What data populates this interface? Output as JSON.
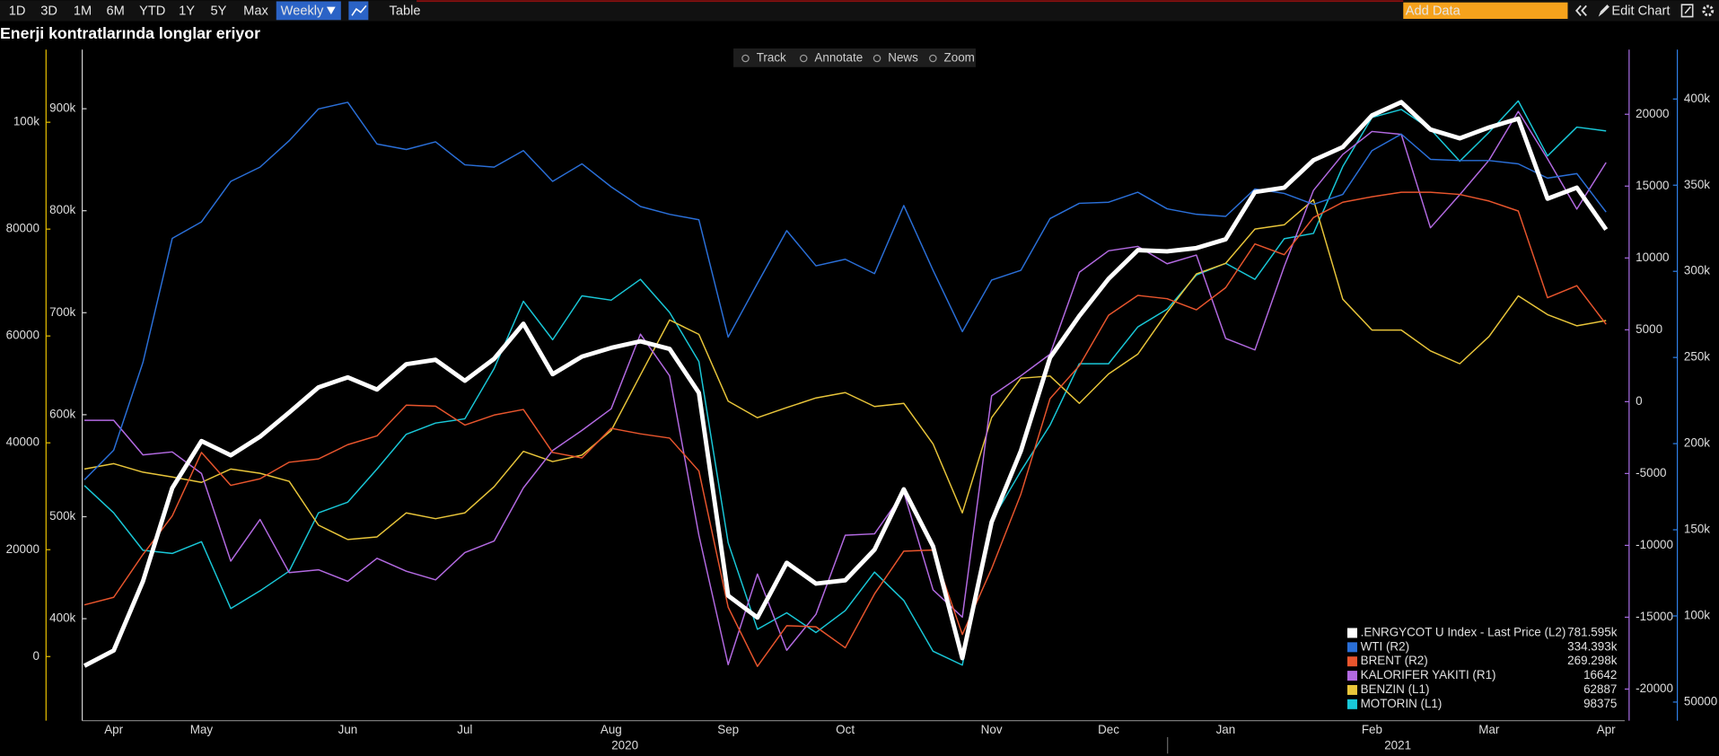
{
  "toolbar": {
    "periods": [
      "1D",
      "3D",
      "1M",
      "6M",
      "YTD",
      "1Y",
      "5Y",
      "Max"
    ],
    "frequency": "Weekly",
    "table": "Table",
    "add_data": "Add Data",
    "edit_chart": "Edit Chart"
  },
  "chart_tools": [
    "Track",
    "Annotate",
    "News",
    "Zoom"
  ],
  "chart_data": {
    "type": "line",
    "title": "Enerji kontratlarında longlar eriyor",
    "categories": [
      null,
      "Apr",
      null,
      null,
      "May",
      null,
      null,
      null,
      null,
      "Jun",
      null,
      null,
      null,
      "Jul",
      null,
      null,
      null,
      null,
      "Aug",
      null,
      null,
      null,
      "Sep",
      null,
      null,
      null,
      "Oct",
      null,
      null,
      null,
      null,
      "Nov",
      null,
      null,
      null,
      "Dec",
      null,
      null,
      null,
      "Jan",
      null,
      null,
      null,
      null,
      "Feb",
      null,
      null,
      null,
      "Mar",
      null,
      null,
      null,
      "Apr"
    ],
    "years": [
      "2020",
      "2021"
    ],
    "axes": {
      "L1": {
        "color": "#e8c000",
        "ylim": [
          -12000,
          113600
        ],
        "yticks": [
          0,
          20000,
          40000,
          60000,
          80000,
          {
            "value": 100000,
            "label": "100k"
          }
        ]
      },
      "L2": {
        "color": "#cfcfcf",
        "ylim": [
          300000,
          958000
        ],
        "yticks": [
          {
            "value": 400000,
            "label": "400k"
          },
          {
            "value": 500000,
            "label": "500k"
          },
          {
            "value": 600000,
            "label": "600k"
          },
          {
            "value": 700000,
            "label": "700k"
          },
          {
            "value": 800000,
            "label": "800k"
          },
          {
            "value": 900000,
            "label": "900k"
          }
        ]
      },
      "R1": {
        "color": "#a56be0",
        "ylim": [
          -22200,
          24500
        ],
        "yticks": [
          -20000,
          -15000,
          -10000,
          -5000,
          0,
          5000,
          10000,
          15000,
          20000
        ]
      },
      "R2": {
        "color": "#2f7fe6",
        "ylim": [
          39200,
          428700
        ],
        "yticks": [
          50000,
          {
            "value": 100000,
            "label": "100k"
          },
          {
            "value": 150000,
            "label": "150k"
          },
          {
            "value": 200000,
            "label": "200k"
          },
          {
            "value": 250000,
            "label": "250k"
          },
          {
            "value": 300000,
            "label": "300k"
          },
          {
            "value": 350000,
            "label": "350k"
          },
          {
            "value": 400000,
            "label": "400k"
          }
        ]
      }
    },
    "series": [
      {
        "name": ".ENRGYCOT U Index - Last Price (L2)",
        "axis": "L2",
        "color": "#ffffff",
        "width": 4,
        "last_label": "781.595k",
        "values": [
          353800,
          368800,
          436600,
          528000,
          574200,
          560200,
          578500,
          602200,
          626900,
          636600,
          624700,
          649500,
          653800,
          633300,
          654800,
          689200,
          639800,
          657000,
          665600,
          672000,
          664500,
          621500,
          422600,
          401100,
          454800,
          434400,
          437600,
          467700,
          526900,
          471000,
          361300,
          494600,
          564500,
          655900,
          696800,
          733300,
          761300,
          760200,
          763400,
          772000,
          818300,
          822600,
          849500,
          862400,
          893500,
          906500,
          879600,
          871000,
          881700,
          890300,
          811800,
          822600,
          781595
        ]
      },
      {
        "name": "WTI  (R2)",
        "axis": "R2",
        "color": "#2a6fd8",
        "width": 1.2,
        "last_label": "334.393k",
        "values": [
          179000,
          196200,
          247100,
          319100,
          328700,
          352200,
          360500,
          375800,
          394300,
          398100,
          373900,
          370700,
          375200,
          361800,
          360500,
          370100,
          352200,
          362400,
          349000,
          337600,
          333100,
          329900,
          261800,
          293000,
          323600,
          303200,
          307000,
          298700,
          338200,
          300600,
          265000,
          294900,
          300600,
          330600,
          339500,
          340100,
          345900,
          336300,
          333100,
          331900,
          347800,
          345200,
          338900,
          344600,
          370100,
          379600,
          365000,
          364300,
          364300,
          362400,
          354100,
          356700,
          334393
        ]
      },
      {
        "name": "BRENT (R2)",
        "axis": "R2",
        "color": "#e8552d",
        "width": 1.2,
        "last_label": "269.298k",
        "values": [
          106400,
          110800,
          135700,
          158000,
          194900,
          175800,
          179600,
          189200,
          191100,
          199400,
          204500,
          222300,
          221700,
          210800,
          216600,
          219800,
          194900,
          191700,
          208900,
          205700,
          203200,
          184100,
          105100,
          70700,
          94300,
          93700,
          81500,
          112800,
          137600,
          138200,
          89200,
          127400,
          170700,
          226100,
          245200,
          274500,
          286000,
          284100,
          277700,
          290500,
          315900,
          309600,
          331200,
          340100,
          343300,
          345900,
          345900,
          344600,
          340800,
          335000,
          284700,
          291700,
          269298
        ]
      },
      {
        "name": "KALORIFER YAKITI (R1)",
        "axis": "R1",
        "color": "#b36ae2",
        "width": 1.2,
        "last_label": "16642",
        "values": [
          -1300,
          -1300,
          -3700,
          -3500,
          -5000,
          -11100,
          -8200,
          -11900,
          -11700,
          -12500,
          -10900,
          -11800,
          -12400,
          -10500,
          -9700,
          -6000,
          -3400,
          -2000,
          -500,
          4700,
          1800,
          -9300,
          -18300,
          -12000,
          -17300,
          -14800,
          -9300,
          -9200,
          -6300,
          -13100,
          -15000,
          400,
          1800,
          3300,
          9000,
          10500,
          10800,
          9600,
          10200,
          4400,
          3600,
          9400,
          14700,
          17200,
          18800,
          18600,
          12100,
          14400,
          16800,
          20200,
          16900,
          13400,
          16642
        ]
      },
      {
        "name": "BENZIN (L1)",
        "axis": "L1",
        "color": "#e8c53a",
        "width": 1.2,
        "last_label": "62887",
        "values": [
          35100,
          36100,
          34500,
          33600,
          32600,
          35100,
          34300,
          32800,
          24600,
          21900,
          22400,
          26900,
          25800,
          26900,
          31800,
          38400,
          36500,
          37700,
          42300,
          52700,
          63000,
          60300,
          47800,
          44700,
          46600,
          48400,
          49400,
          46800,
          47400,
          39800,
          26900,
          44700,
          52100,
          52500,
          47400,
          52900,
          56600,
          64400,
          71600,
          73600,
          80000,
          80800,
          85500,
          66900,
          61100,
          61100,
          57200,
          54800,
          59900,
          67500,
          64000,
          61900,
          62887
        ]
      },
      {
        "name": "MOTORIN (L1)",
        "axis": "L1",
        "color": "#19c8d8",
        "width": 1.2,
        "last_label": "98375",
        "values": [
          32000,
          26900,
          19900,
          19300,
          21500,
          9000,
          12300,
          16000,
          26900,
          28900,
          35100,
          41600,
          43700,
          44500,
          53900,
          66500,
          59300,
          67500,
          66700,
          70600,
          64400,
          55200,
          21300,
          5100,
          8200,
          4500,
          8600,
          15800,
          10500,
          1000,
          -1600,
          25400,
          34700,
          43300,
          54800,
          54800,
          61700,
          65000,
          71400,
          73600,
          70600,
          78200,
          79200,
          91700,
          100900,
          102400,
          98700,
          92700,
          98100,
          104000,
          93700,
          99100,
          98375
        ]
      }
    ]
  }
}
